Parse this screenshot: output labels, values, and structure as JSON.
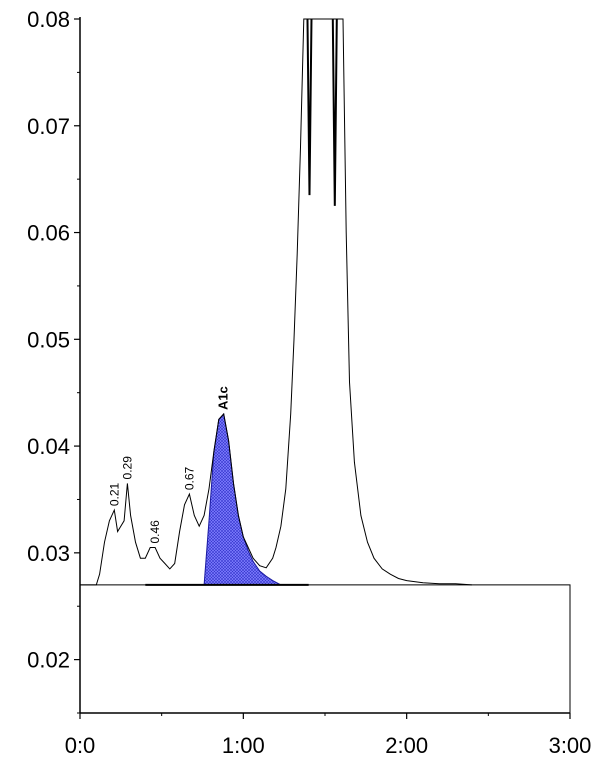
{
  "chart_data": {
    "type": "line",
    "title": "",
    "xlabel": "",
    "ylabel": "",
    "xlim": [
      0,
      3
    ],
    "ylim": [
      0.015,
      0.08
    ],
    "x_ticks": [
      {
        "value": 0,
        "label": "0:0"
      },
      {
        "value": 1,
        "label": "1:00"
      },
      {
        "value": 2,
        "label": "2:00"
      },
      {
        "value": 3,
        "label": "3:00"
      }
    ],
    "y_ticks": [
      {
        "value": 0.02,
        "label": "0.02"
      },
      {
        "value": 0.03,
        "label": "0.03"
      },
      {
        "value": 0.04,
        "label": "0.04"
      },
      {
        "value": 0.05,
        "label": "0.05"
      },
      {
        "value": 0.06,
        "label": "0.06"
      },
      {
        "value": 0.07,
        "label": "0.07"
      },
      {
        "value": 0.08,
        "label": "0.08"
      }
    ],
    "baseline": 0.027,
    "series": [
      {
        "x": [
          0.0,
          0.06,
          0.1,
          0.12,
          0.15,
          0.18,
          0.21,
          0.23,
          0.25,
          0.27,
          0.29,
          0.31,
          0.34,
          0.37,
          0.4,
          0.43,
          0.46,
          0.49,
          0.52,
          0.55,
          0.58,
          0.61,
          0.64,
          0.67,
          0.7,
          0.73,
          0.76,
          0.79,
          0.82,
          0.85,
          0.88,
          0.91,
          0.94,
          0.97,
          1.0,
          1.03,
          1.06,
          1.1,
          1.14,
          1.18,
          1.2,
          1.23,
          1.26,
          1.29,
          1.31,
          1.33,
          1.35,
          1.37,
          1.39,
          1.41,
          1.43,
          1.45,
          1.47,
          1.49,
          1.51,
          1.53,
          1.55,
          1.57,
          1.59,
          1.61,
          1.63,
          1.65,
          1.68,
          1.72,
          1.76,
          1.8,
          1.85,
          1.9,
          1.95,
          2.0,
          2.1,
          2.2,
          2.3,
          2.4
        ],
        "y": [
          0.027,
          0.027,
          0.027,
          0.028,
          0.031,
          0.033,
          0.034,
          0.032,
          0.0325,
          0.033,
          0.0365,
          0.0335,
          0.031,
          0.0295,
          0.0295,
          0.0305,
          0.0305,
          0.0295,
          0.029,
          0.0285,
          0.029,
          0.032,
          0.0345,
          0.0355,
          0.0335,
          0.0325,
          0.0335,
          0.036,
          0.0395,
          0.0425,
          0.043,
          0.0405,
          0.0365,
          0.0335,
          0.0315,
          0.0305,
          0.0295,
          0.0288,
          0.0286,
          0.0295,
          0.0305,
          0.0325,
          0.036,
          0.043,
          0.05,
          0.058,
          0.068,
          0.08,
          0.08,
          0.08,
          0.08,
          0.08,
          0.08,
          0.08,
          0.08,
          0.08,
          0.08,
          0.08,
          0.08,
          0.08,
          0.06,
          0.046,
          0.0385,
          0.0335,
          0.031,
          0.0295,
          0.0285,
          0.028,
          0.0276,
          0.0274,
          0.0272,
          0.0271,
          0.0271,
          0.027
        ]
      }
    ],
    "peak_labels": [
      {
        "label": "0.21",
        "x": 0.21,
        "y": 0.034
      },
      {
        "label": "0.29",
        "x": 0.29,
        "y": 0.0365
      },
      {
        "label": "0.46",
        "x": 0.46,
        "y": 0.0305
      },
      {
        "label": "0.67",
        "x": 0.67,
        "y": 0.0355
      },
      {
        "label": "A1c",
        "x": 0.88,
        "y": 0.043,
        "bold": true
      }
    ],
    "shaded_peak": {
      "label": "A1c",
      "color": "#3333cc",
      "x": [
        0.76,
        0.79,
        0.82,
        0.85,
        0.88,
        0.91,
        0.94,
        0.97,
        1.0,
        1.03,
        1.06,
        1.1,
        1.14,
        1.18,
        1.23
      ],
      "y": [
        0.027,
        0.033,
        0.0395,
        0.0425,
        0.043,
        0.0405,
        0.0365,
        0.0335,
        0.0315,
        0.0302,
        0.0292,
        0.0283,
        0.0278,
        0.0274,
        0.027
      ]
    },
    "notches": [
      {
        "x": 1.405,
        "ytop": 0.08,
        "ybottom": 0.0635
      },
      {
        "x": 1.56,
        "ytop": 0.08,
        "ybottom": 0.0625
      }
    ],
    "colors": {
      "line": "#000000",
      "fill": "#7b7bff",
      "hatch": "#3333cc",
      "background": "#ffffff"
    }
  }
}
